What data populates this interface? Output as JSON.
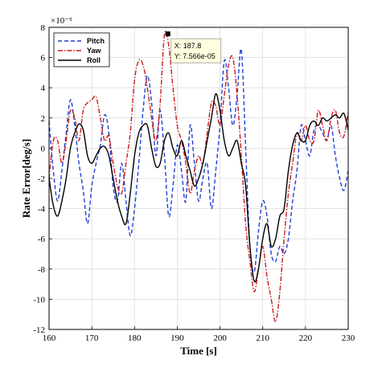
{
  "chart_data": {
    "type": "line",
    "title": "",
    "xlabel": "Time [s]",
    "ylabel": "Rate Error[deg/s]",
    "y_exponent_label": "×10⁻⁵",
    "xlim": [
      160,
      230
    ],
    "ylim": [
      -12,
      8
    ],
    "xticks": [
      160,
      170,
      180,
      190,
      200,
      210,
      220,
      230
    ],
    "yticks": [
      -12,
      -10,
      -8,
      -6,
      -4,
      -2,
      0,
      2,
      4,
      6,
      8
    ],
    "grid": true,
    "legend_position": "top-left",
    "series": [
      {
        "name": "Pitch",
        "color": "#1f3fd6",
        "style": "dashed",
        "x": [
          160,
          161,
          162,
          163,
          164,
          165,
          166,
          167,
          168,
          169,
          170,
          171,
          172,
          173,
          174,
          175,
          176,
          177,
          178,
          179,
          180,
          181,
          182,
          183,
          184,
          185,
          186,
          187,
          188,
          189,
          190,
          191,
          192,
          193,
          194,
          195,
          196,
          197,
          198,
          199,
          200,
          201,
          202,
          203,
          204,
          205,
          206,
          207,
          208,
          209,
          210,
          211,
          212,
          213,
          214,
          215,
          216,
          217,
          218,
          219,
          220,
          221,
          222,
          223,
          224,
          225,
          226,
          227,
          228,
          229,
          230
        ],
        "y": [
          1.8,
          -1.5,
          -3.5,
          -1.5,
          1,
          3.2,
          1.5,
          -1,
          -2.8,
          -5,
          -2.5,
          -1,
          0.2,
          2.2,
          1,
          -2.5,
          -3.5,
          -1,
          -3.5,
          -5.8,
          -4,
          -1,
          2.5,
          4.8,
          3,
          -0.5,
          2.5,
          -0.5,
          -4.5,
          -2.5,
          0.2,
          -1.5,
          -3.5,
          1.5,
          -1,
          -3.5,
          -2,
          -1,
          -4,
          -1.5,
          1.5,
          5.8,
          4,
          1.5,
          3.5,
          6.5,
          0,
          -6.5,
          -8.2,
          -5.5,
          -3.5,
          -4.5,
          -7,
          -7.5,
          -6.5,
          -7,
          -6,
          -3.5,
          -1.5,
          1.5,
          0.5,
          -0.5,
          1.2,
          1.5,
          1,
          0.5,
          1.5,
          -0.5,
          -2,
          -2.8,
          -1.5
        ]
      },
      {
        "name": "Yaw",
        "color": "#cc1a1a",
        "style": "dashdot",
        "x": [
          160,
          161,
          162,
          163,
          164,
          165,
          166,
          167,
          168,
          169,
          170,
          171,
          172,
          173,
          174,
          175,
          176,
          177,
          178,
          179,
          180,
          181,
          182,
          183,
          184,
          185,
          186,
          187,
          188,
          189,
          190,
          191,
          192,
          193,
          194,
          195,
          196,
          197,
          198,
          199,
          200,
          201,
          202,
          203,
          204,
          205,
          206,
          207,
          208,
          209,
          210,
          211,
          212,
          213,
          214,
          215,
          216,
          217,
          218,
          219,
          220,
          221,
          222,
          223,
          224,
          225,
          226,
          227,
          228,
          229,
          230
        ],
        "y": [
          -2,
          0.5,
          0.5,
          -1,
          0.5,
          2.5,
          2,
          0.5,
          2.5,
          3,
          3.2,
          3.4,
          2,
          0.5,
          0.8,
          -1,
          -2.5,
          -3,
          -1,
          1,
          4.5,
          5.8,
          5.5,
          4,
          2,
          0.5,
          3,
          7.5,
          6.8,
          4,
          1.5,
          0.5,
          -1,
          -3,
          -1.5,
          -0.5,
          -1,
          1,
          3,
          2.8,
          1.5,
          3.5,
          5.5,
          6,
          3.5,
          -0.5,
          -5,
          -7.5,
          -9.5,
          -8,
          -6.5,
          -8.5,
          -10,
          -11.5,
          -9.5,
          -6,
          -3,
          -1,
          1,
          0.5,
          1.5,
          0.5,
          0.5,
          2.5,
          1.5,
          0.5,
          2,
          2.5,
          1,
          0.8,
          2.4
        ]
      },
      {
        "name": "Roll",
        "color": "#000000",
        "style": "solid",
        "x": [
          160,
          161,
          162,
          163,
          164,
          165,
          166,
          167,
          168,
          169,
          170,
          171,
          172,
          173,
          174,
          175,
          176,
          177,
          178,
          179,
          180,
          181,
          182,
          183,
          184,
          185,
          186,
          187,
          188,
          189,
          190,
          191,
          192,
          193,
          194,
          195,
          196,
          197,
          198,
          199,
          200,
          201,
          202,
          203,
          204,
          205,
          206,
          207,
          208,
          209,
          210,
          211,
          212,
          213,
          214,
          215,
          216,
          217,
          218,
          219,
          220,
          221,
          222,
          223,
          224,
          225,
          226,
          227,
          228,
          229,
          230
        ],
        "y": [
          -2,
          -3.8,
          -4.5,
          -3.5,
          -2,
          0,
          1,
          1.6,
          1.2,
          -0.5,
          -1,
          -0.5,
          0,
          0.1,
          -0.5,
          -2,
          -3.5,
          -4.5,
          -5,
          -3,
          -0.5,
          1,
          1.5,
          1.5,
          0,
          -1.2,
          -1,
          0.5,
          1,
          0,
          -0.5,
          0.5,
          -0.5,
          -1.5,
          -2.5,
          -2,
          -1,
          0.5,
          2,
          3.6,
          2.5,
          0.5,
          -0.5,
          0,
          0.5,
          -1,
          -2.5,
          -6.5,
          -8.8,
          -8,
          -6,
          -5,
          -6.5,
          -6,
          -4.5,
          -4,
          -1.5,
          0.2,
          1,
          0.5,
          0.5,
          1.5,
          1.8,
          1.5,
          2,
          1.8,
          2,
          2.2,
          2,
          2.3,
          1.2
        ]
      }
    ],
    "datatip": {
      "x_label": "X: 187.8",
      "y_label": "Y: 7.566e-05",
      "x": 187.8,
      "y": 7.566
    }
  }
}
